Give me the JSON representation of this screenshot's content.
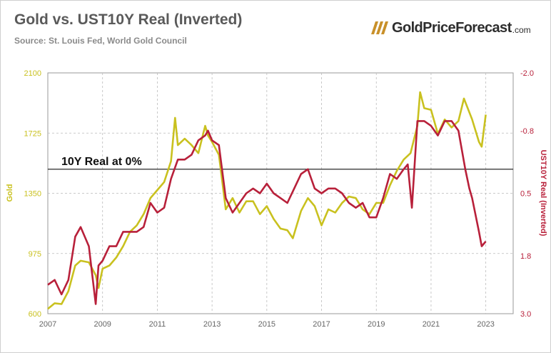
{
  "header": {
    "title": "Gold vs. UST10Y Real (Inverted)",
    "subtitle": "Source: St. Louis Fed, World Gold Council"
  },
  "brand": {
    "name": "GoldPriceForecast",
    "domain": ".com",
    "icon": "gold-bars-icon",
    "color": "#c8902a"
  },
  "colors": {
    "gold": "#c9c11f",
    "real": "#b8203a",
    "refline": "#111111",
    "grid": "#bbbbbb"
  },
  "chart_data": {
    "type": "line",
    "title": "Gold vs. UST10Y Real (Inverted)",
    "annotation": "10Y Real at 0%",
    "grid": true,
    "x_axis": {
      "min": 2007.0,
      "max": 2024.0,
      "ticks": [
        "2007",
        "2009",
        "2011",
        "2013",
        "2015",
        "2017",
        "2019",
        "2021",
        "2023"
      ],
      "tick_values": [
        2007,
        2009,
        2011,
        2013,
        2015,
        2017,
        2019,
        2021,
        2023
      ]
    },
    "y_left": {
      "label": "Gold",
      "min": 600,
      "max": 2100,
      "ticks": [
        "600",
        "975",
        "1350",
        "1725",
        "2100"
      ],
      "tick_values": [
        600,
        975,
        1350,
        1725,
        2100
      ]
    },
    "y_right": {
      "label": "UST10Y Real (Inverted)",
      "inverted": true,
      "min": -2.0,
      "max": 3.0,
      "ticks": [
        "-2.0",
        "-0.8",
        "0.5",
        "1.8",
        "3.0"
      ],
      "tick_values": [
        -2.0,
        -0.8,
        0.5,
        1.8,
        3.0
      ]
    },
    "reference_line": {
      "axis": "right",
      "value": 0.0,
      "label": "10Y Real at 0%"
    },
    "series": [
      {
        "name": "Gold",
        "axis": "left",
        "x": [
          2007.0,
          2007.25,
          2007.5,
          2007.75,
          2008.0,
          2008.2,
          2008.5,
          2008.75,
          2008.85,
          2009.0,
          2009.25,
          2009.5,
          2009.75,
          2010.0,
          2010.25,
          2010.5,
          2010.75,
          2011.0,
          2011.25,
          2011.5,
          2011.65,
          2011.75,
          2012.0,
          2012.25,
          2012.5,
          2012.75,
          2012.85,
          2013.0,
          2013.25,
          2013.5,
          2013.75,
          2014.0,
          2014.25,
          2014.5,
          2014.75,
          2015.0,
          2015.25,
          2015.5,
          2015.75,
          2015.95,
          2016.25,
          2016.5,
          2016.75,
          2017.0,
          2017.25,
          2017.5,
          2017.75,
          2018.0,
          2018.25,
          2018.5,
          2018.75,
          2019.0,
          2019.25,
          2019.5,
          2019.75,
          2020.0,
          2020.25,
          2020.5,
          2020.6,
          2020.75,
          2021.0,
          2021.25,
          2021.5,
          2021.75,
          2022.0,
          2022.2,
          2022.5,
          2022.75,
          2022.85,
          2023.0
        ],
        "y": [
          630,
          665,
          660,
          740,
          900,
          930,
          920,
          840,
          760,
          880,
          900,
          950,
          1020,
          1110,
          1150,
          1220,
          1320,
          1370,
          1420,
          1550,
          1820,
          1650,
          1690,
          1650,
          1600,
          1770,
          1710,
          1670,
          1590,
          1250,
          1320,
          1230,
          1300,
          1300,
          1220,
          1270,
          1190,
          1130,
          1120,
          1070,
          1240,
          1320,
          1270,
          1150,
          1250,
          1230,
          1290,
          1330,
          1320,
          1250,
          1220,
          1290,
          1290,
          1400,
          1490,
          1560,
          1600,
          1770,
          1980,
          1880,
          1870,
          1720,
          1810,
          1760,
          1800,
          1940,
          1810,
          1670,
          1640,
          1840
        ],
        "values": [
          630,
          665,
          660,
          740,
          900,
          930,
          920,
          840,
          760,
          880,
          900,
          950,
          1020,
          1110,
          1150,
          1220,
          1320,
          1370,
          1420,
          1550,
          1820,
          1650,
          1690,
          1650,
          1600,
          1770,
          1710,
          1670,
          1590,
          1250,
          1320,
          1230,
          1300,
          1300,
          1220,
          1270,
          1190,
          1130,
          1120,
          1070,
          1240,
          1320,
          1270,
          1150,
          1250,
          1230,
          1290,
          1330,
          1320,
          1250,
          1220,
          1290,
          1290,
          1400,
          1490,
          1560,
          1600,
          1770,
          1980,
          1880,
          1870,
          1720,
          1810,
          1760,
          1800,
          1940,
          1810,
          1670,
          1640,
          1840
        ]
      },
      {
        "name": "UST10Y Real (Inverted)",
        "axis": "right",
        "x": [
          2007.0,
          2007.25,
          2007.5,
          2007.75,
          2008.0,
          2008.2,
          2008.5,
          2008.75,
          2008.85,
          2009.0,
          2009.25,
          2009.5,
          2009.75,
          2010.0,
          2010.25,
          2010.5,
          2010.75,
          2011.0,
          2011.25,
          2011.5,
          2011.75,
          2012.0,
          2012.25,
          2012.5,
          2012.75,
          2012.85,
          2013.0,
          2013.25,
          2013.5,
          2013.75,
          2014.0,
          2014.25,
          2014.5,
          2014.75,
          2015.0,
          2015.25,
          2015.5,
          2015.75,
          2016.0,
          2016.25,
          2016.5,
          2016.75,
          2017.0,
          2017.25,
          2017.5,
          2017.75,
          2018.0,
          2018.25,
          2018.5,
          2018.75,
          2019.0,
          2019.25,
          2019.5,
          2019.75,
          2020.0,
          2020.15,
          2020.3,
          2020.5,
          2020.75,
          2021.0,
          2021.25,
          2021.5,
          2021.75,
          2022.0,
          2022.25,
          2022.4,
          2022.5,
          2022.75,
          2022.85,
          2023.0
        ],
        "y": [
          2.4,
          2.3,
          2.6,
          2.3,
          1.4,
          1.2,
          1.6,
          2.8,
          2.0,
          1.9,
          1.6,
          1.6,
          1.3,
          1.3,
          1.3,
          1.2,
          0.7,
          0.9,
          0.8,
          0.2,
          -0.2,
          -0.2,
          -0.3,
          -0.6,
          -0.7,
          -0.8,
          -0.6,
          -0.5,
          0.6,
          0.9,
          0.7,
          0.5,
          0.4,
          0.5,
          0.3,
          0.5,
          0.6,
          0.7,
          0.4,
          0.1,
          0.0,
          0.4,
          0.5,
          0.4,
          0.4,
          0.5,
          0.7,
          0.8,
          0.7,
          1.0,
          1.0,
          0.6,
          0.1,
          0.2,
          0.0,
          -0.1,
          0.8,
          -1.0,
          -1.0,
          -0.9,
          -0.7,
          -1.0,
          -1.0,
          -0.8,
          0.0,
          0.4,
          0.6,
          1.3,
          1.6,
          1.5
        ],
        "values": [
          2.4,
          2.3,
          2.6,
          2.3,
          1.4,
          1.2,
          1.6,
          2.8,
          2.0,
          1.9,
          1.6,
          1.6,
          1.3,
          1.3,
          1.3,
          1.2,
          0.7,
          0.9,
          0.8,
          0.2,
          -0.2,
          -0.2,
          -0.3,
          -0.6,
          -0.7,
          -0.8,
          -0.6,
          -0.5,
          0.6,
          0.9,
          0.7,
          0.5,
          0.4,
          0.5,
          0.3,
          0.5,
          0.6,
          0.7,
          0.4,
          0.1,
          0.0,
          0.4,
          0.5,
          0.4,
          0.4,
          0.5,
          0.7,
          0.8,
          0.7,
          1.0,
          1.0,
          0.6,
          0.1,
          0.2,
          0.0,
          -0.1,
          0.8,
          -1.0,
          -1.0,
          -0.9,
          -0.7,
          -1.0,
          -1.0,
          -0.8,
          0.0,
          0.4,
          0.6,
          1.3,
          1.6,
          1.5
        ]
      }
    ]
  }
}
